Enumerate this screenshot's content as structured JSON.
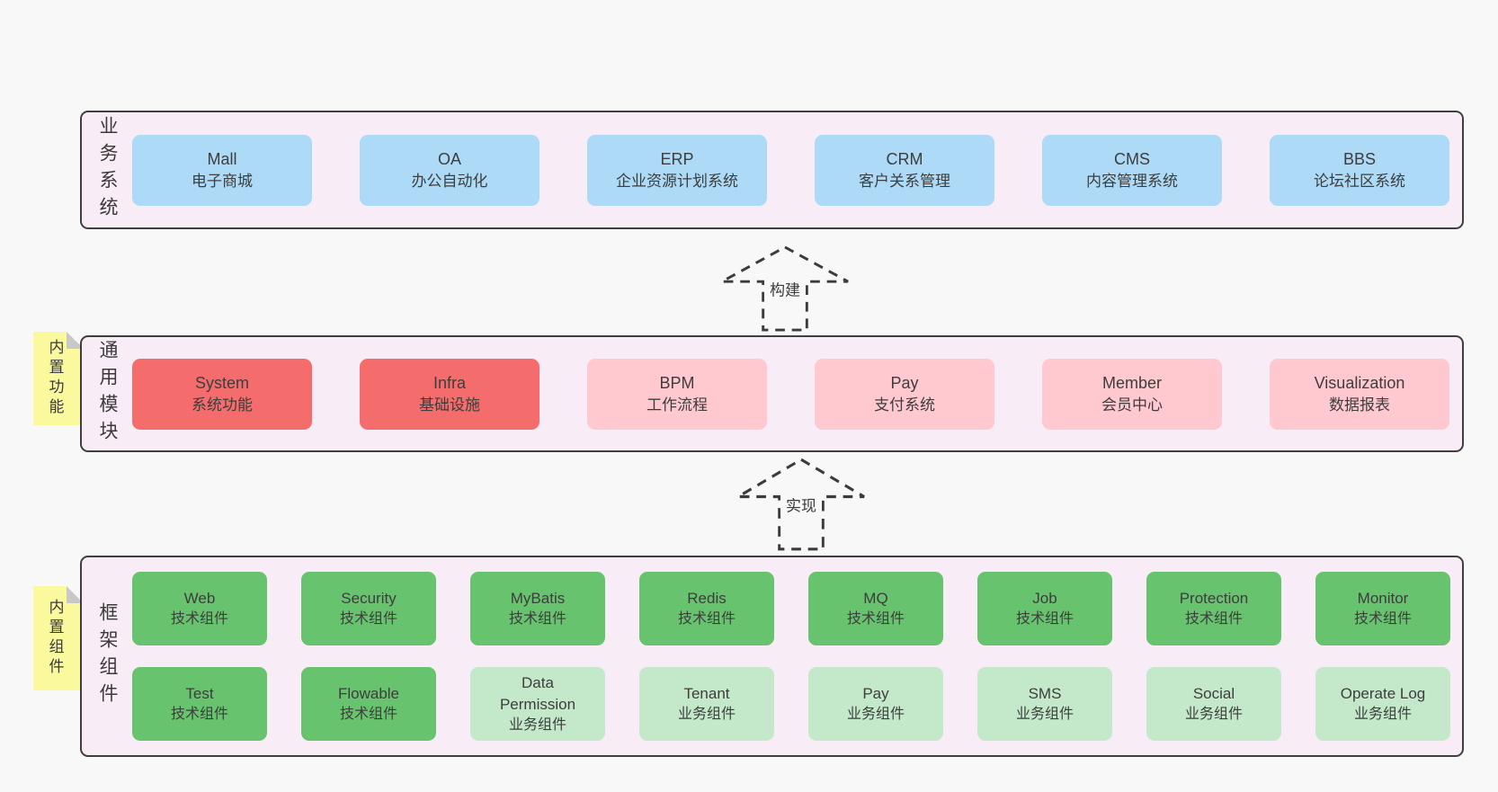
{
  "diagram": {
    "layers": [
      {
        "id": "business",
        "label": "业务系统",
        "rows": [
          [
            {
              "title": "Mall",
              "subtitle": "电子商城",
              "variant": "blue"
            },
            {
              "title": "OA",
              "subtitle": "办公自动化",
              "variant": "blue"
            },
            {
              "title": "ERP",
              "subtitle": "企业资源计划系统",
              "variant": "blue"
            },
            {
              "title": "CRM",
              "subtitle": "客户关系管理",
              "variant": "blue"
            },
            {
              "title": "CMS",
              "subtitle": "内容管理系统",
              "variant": "blue"
            },
            {
              "title": "BBS",
              "subtitle": "论坛社区系统",
              "variant": "blue"
            }
          ]
        ]
      },
      {
        "id": "common",
        "label": "通用模块",
        "sticky": "内置功能",
        "rows": [
          [
            {
              "title": "System",
              "subtitle": "系统功能",
              "variant": "red"
            },
            {
              "title": "Infra",
              "subtitle": "基础设施",
              "variant": "red"
            },
            {
              "title": "BPM",
              "subtitle": "工作流程",
              "variant": "pink"
            },
            {
              "title": "Pay",
              "subtitle": "支付系统",
              "variant": "pink"
            },
            {
              "title": "Member",
              "subtitle": "会员中心",
              "variant": "pink"
            },
            {
              "title": "Visualization",
              "subtitle": "数据报表",
              "variant": "pink"
            }
          ]
        ]
      },
      {
        "id": "framework",
        "label": "框架组件",
        "sticky": "内置组件",
        "rows": [
          [
            {
              "title": "Web",
              "subtitle": "技术组件",
              "variant": "green"
            },
            {
              "title": "Security",
              "subtitle": "技术组件",
              "variant": "green"
            },
            {
              "title": "MyBatis",
              "subtitle": "技术组件",
              "variant": "green"
            },
            {
              "title": "Redis",
              "subtitle": "技术组件",
              "variant": "green"
            },
            {
              "title": "MQ",
              "subtitle": "技术组件",
              "variant": "green"
            },
            {
              "title": "Job",
              "subtitle": "技术组件",
              "variant": "green"
            },
            {
              "title": "Protection",
              "subtitle": "技术组件",
              "variant": "green"
            },
            {
              "title": "Monitor",
              "subtitle": "技术组件",
              "variant": "green"
            }
          ],
          [
            {
              "title": "Test",
              "subtitle": "技术组件",
              "variant": "green"
            },
            {
              "title": "Flowable",
              "subtitle": "技术组件",
              "variant": "green"
            },
            {
              "title": "Data Permission",
              "subtitle": "业务组件",
              "variant": "green-light"
            },
            {
              "title": "Tenant",
              "subtitle": "业务组件",
              "variant": "green-light"
            },
            {
              "title": "Pay",
              "subtitle": "业务组件",
              "variant": "green-light"
            },
            {
              "title": "SMS",
              "subtitle": "业务组件",
              "variant": "green-light"
            },
            {
              "title": "Social",
              "subtitle": "业务组件",
              "variant": "green-light"
            },
            {
              "title": "Operate Log",
              "subtitle": "业务组件",
              "variant": "green-light"
            }
          ]
        ]
      }
    ],
    "arrows": [
      {
        "label": "构建"
      },
      {
        "label": "实现"
      }
    ],
    "colors": {
      "page_bg": "#f8f8f8",
      "layer_bg": "#f8ecf6",
      "layer_border": "#3f3f3f",
      "blue": "#addaf6",
      "red": "#f56c6c",
      "pink": "#ffc9cf",
      "green_dark": "#68c36f",
      "green_light": "#c4e9ca",
      "sticky_yellow": "#fbf99e",
      "sticky_fold": "#c8c8c8",
      "text": "#3d3d3d"
    }
  }
}
